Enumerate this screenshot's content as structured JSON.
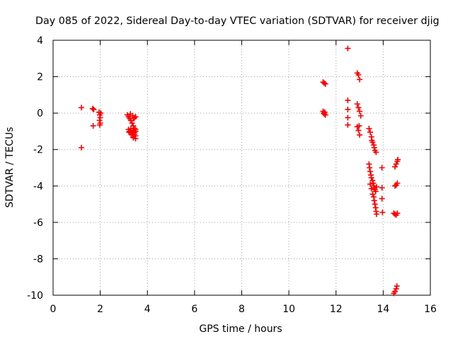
{
  "chart_data": {
    "type": "scatter",
    "title": "Day 085 of 2022, Sidereal Day-to-day VTEC variation (SDTVAR) for receiver djig",
    "xlabel": "GPS time / hours",
    "ylabel": "SDTVAR / TECUs",
    "xlim": [
      0,
      16
    ],
    "ylim": [
      -10,
      4
    ],
    "xticks": [
      0,
      2,
      4,
      6,
      8,
      10,
      12,
      14,
      16
    ],
    "yticks": [
      -10,
      -8,
      -6,
      -4,
      -2,
      0,
      2,
      4
    ],
    "xtick_labels": [
      "0",
      "2",
      "4",
      "6",
      "8",
      "10",
      "12",
      "14",
      "16"
    ],
    "ytick_labels": [
      "-10",
      "-8",
      "-6",
      "-4",
      "-2",
      "0",
      "2",
      "4"
    ],
    "grid": true,
    "marker": "+",
    "color": "#ff0000",
    "series": [
      {
        "name": "SDTVAR",
        "points": [
          [
            1.2,
            0.3
          ],
          [
            1.2,
            -1.9
          ],
          [
            1.68,
            0.25
          ],
          [
            1.72,
            0.2
          ],
          [
            1.7,
            -0.7
          ],
          [
            1.95,
            0.05
          ],
          [
            1.98,
            -0.1
          ],
          [
            2.0,
            -0.25
          ],
          [
            1.97,
            -0.4
          ],
          [
            2.0,
            -0.55
          ],
          [
            1.98,
            -0.65
          ],
          [
            2.02,
            0.0
          ],
          [
            3.15,
            -0.1
          ],
          [
            3.2,
            -0.2
          ],
          [
            3.25,
            -0.3
          ],
          [
            3.28,
            -0.05
          ],
          [
            3.3,
            -0.4
          ],
          [
            3.35,
            -0.55
          ],
          [
            3.4,
            -0.7
          ],
          [
            3.45,
            -0.85
          ],
          [
            3.5,
            -1.0
          ],
          [
            3.5,
            -0.2
          ],
          [
            3.45,
            -0.25
          ],
          [
            3.38,
            -0.15
          ],
          [
            3.42,
            -0.3
          ],
          [
            3.2,
            -0.9
          ],
          [
            3.25,
            -1.0
          ],
          [
            3.3,
            -1.1
          ],
          [
            3.35,
            -1.2
          ],
          [
            3.4,
            -1.3
          ],
          [
            3.45,
            -1.15
          ],
          [
            3.5,
            -1.25
          ],
          [
            3.3,
            -0.85
          ],
          [
            3.38,
            -0.95
          ],
          [
            3.45,
            -1.05
          ],
          [
            3.5,
            -0.9
          ],
          [
            3.4,
            -1.35
          ],
          [
            3.5,
            -1.4
          ],
          [
            3.22,
            -1.05
          ],
          [
            11.45,
            1.7
          ],
          [
            11.5,
            1.65
          ],
          [
            11.55,
            1.6
          ],
          [
            11.45,
            0.1
          ],
          [
            11.48,
            0.0
          ],
          [
            11.5,
            -0.05
          ],
          [
            11.52,
            0.05
          ],
          [
            11.55,
            -0.1
          ],
          [
            12.5,
            3.55
          ],
          [
            12.5,
            0.7
          ],
          [
            12.5,
            0.2
          ],
          [
            12.5,
            -0.25
          ],
          [
            12.5,
            -0.65
          ],
          [
            12.9,
            2.2
          ],
          [
            12.95,
            2.1
          ],
          [
            13.0,
            1.85
          ],
          [
            12.9,
            0.5
          ],
          [
            12.95,
            0.3
          ],
          [
            13.0,
            0.1
          ],
          [
            13.05,
            -0.15
          ],
          [
            12.9,
            -0.75
          ],
          [
            12.95,
            -0.95
          ],
          [
            13.0,
            -1.2
          ],
          [
            12.98,
            -0.7
          ],
          [
            13.4,
            -0.85
          ],
          [
            13.45,
            -1.05
          ],
          [
            13.5,
            -1.3
          ],
          [
            13.52,
            -1.5
          ],
          [
            13.55,
            -1.6
          ],
          [
            13.6,
            -1.75
          ],
          [
            13.62,
            -1.9
          ],
          [
            13.65,
            -2.05
          ],
          [
            13.7,
            -2.15
          ],
          [
            13.4,
            -2.8
          ],
          [
            13.42,
            -3.0
          ],
          [
            13.45,
            -3.2
          ],
          [
            13.48,
            -3.4
          ],
          [
            13.5,
            -3.55
          ],
          [
            13.55,
            -3.7
          ],
          [
            13.58,
            -3.85
          ],
          [
            13.6,
            -4.0
          ],
          [
            13.62,
            -4.1
          ],
          [
            13.65,
            -4.2
          ],
          [
            13.68,
            -4.3
          ],
          [
            13.55,
            -4.45
          ],
          [
            13.6,
            -4.6
          ],
          [
            13.62,
            -4.8
          ],
          [
            13.65,
            -5.0
          ],
          [
            13.68,
            -5.2
          ],
          [
            13.7,
            -5.4
          ],
          [
            13.72,
            -5.55
          ],
          [
            13.45,
            -3.9
          ],
          [
            13.5,
            -4.15
          ],
          [
            13.72,
            -4.05
          ],
          [
            13.95,
            -3.0
          ],
          [
            13.95,
            -4.1
          ],
          [
            13.95,
            -4.7
          ],
          [
            13.97,
            -5.45
          ],
          [
            14.5,
            -2.95
          ],
          [
            14.55,
            -2.8
          ],
          [
            14.6,
            -2.65
          ],
          [
            14.62,
            -2.55
          ],
          [
            14.5,
            -4.0
          ],
          [
            14.55,
            -3.95
          ],
          [
            14.6,
            -3.85
          ],
          [
            14.45,
            -5.5
          ],
          [
            14.5,
            -5.55
          ],
          [
            14.55,
            -5.6
          ],
          [
            14.6,
            -5.5
          ],
          [
            14.45,
            -9.9
          ],
          [
            14.5,
            -9.8
          ],
          [
            14.55,
            -9.65
          ],
          [
            14.58,
            -9.5
          ]
        ]
      }
    ]
  }
}
